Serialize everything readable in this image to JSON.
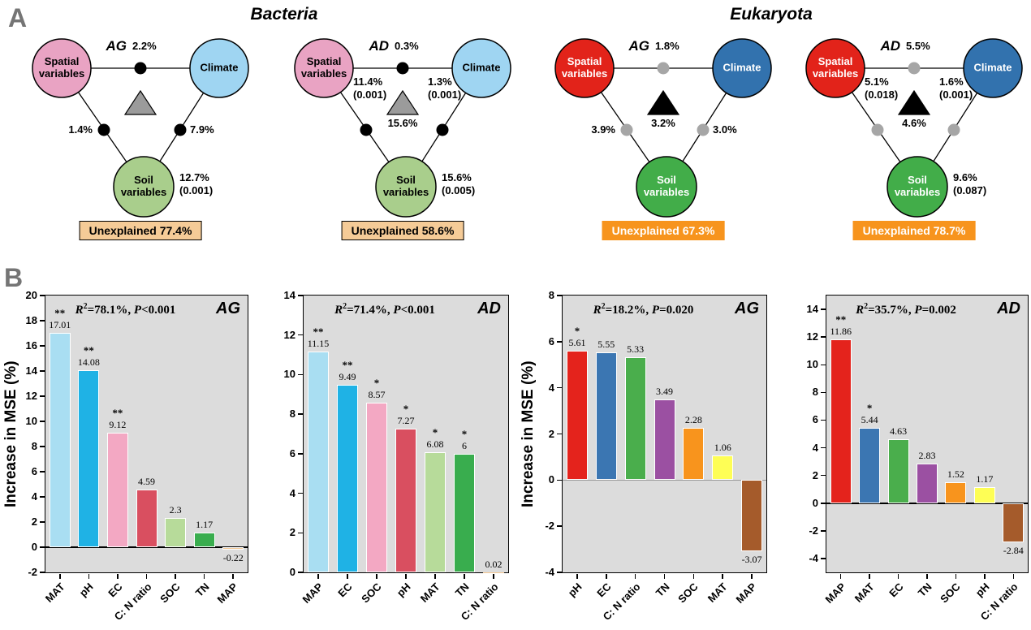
{
  "theme": {
    "panel_letter": "#757575",
    "plot_bg": "#DCDCDC",
    "bac_spatial": "#E9A3C3",
    "bac_climate": "#9FD5F2",
    "bac_soil": "#A9CE8C",
    "bac_dot": "#000000",
    "bac_tri": "#9B9B9B",
    "bac_box": "#F5CB97",
    "euk_spatial": "#E2231A",
    "euk_climate": "#3272AE",
    "euk_soil": "#42AD49",
    "euk_dot": "#A6A6A6",
    "euk_tri": "#000000",
    "euk_box": "#F7941D"
  },
  "panel_a": {
    "label": "A",
    "groups": [
      {
        "title": "Bacteria"
      },
      {
        "title": "Eukaryota"
      }
    ],
    "circle_names": {
      "spatial": "Spatial variables",
      "climate": "Climate",
      "soil": "Soil variables"
    },
    "diagrams": [
      {
        "group": "Bacteria",
        "code": "AG",
        "top_pct": "2.2%",
        "left_pct": "1.4%",
        "right_pct": "7.9%",
        "spatial_side": "",
        "climate_side": "",
        "center_pct": "",
        "soil_side": "12.7%\n(0.001)",
        "unexplained": "Unexplained 77.4%"
      },
      {
        "group": "Bacteria",
        "code": "AD",
        "top_pct": "0.3%",
        "left_pct": "",
        "right_pct": "",
        "spatial_side": "11.4%\n(0.001)",
        "climate_side": "1.3%\n(0.001)",
        "center_pct": "15.6%",
        "soil_side": "15.6%\n(0.005)",
        "unexplained": "Unexplained 58.6%"
      },
      {
        "group": "Eukaryota",
        "code": "AG",
        "top_pct": "1.8%",
        "left_pct": "3.9%",
        "right_pct": "3.0%",
        "spatial_side": "",
        "climate_side": "",
        "center_pct": "3.2%",
        "soil_side": "",
        "unexplained": "Unexplained 67.3%"
      },
      {
        "group": "Eukaryota",
        "code": "AD",
        "top_pct": "5.5%",
        "left_pct": "",
        "right_pct": "",
        "spatial_side": "5.1%\n(0.018)",
        "climate_side": "1.6%\n(0.001)",
        "center_pct": "4.6%",
        "soil_side": "9.6%\n(0.087)",
        "unexplained": "Unexplained 78.7%"
      }
    ]
  },
  "panel_b": {
    "label": "B",
    "ylabel": "Increase in MSE (%)"
  },
  "chart_data": [
    {
      "type": "bar",
      "group": "Bacteria",
      "code": "AG",
      "title": "R2=78.1%, P<0.001",
      "annotation": {
        "r": "R",
        "sup": "2",
        "rest": "=78.1%, ",
        "p": "P",
        "pv": "<0.001"
      },
      "ylabel": "Increase in MSE (%)",
      "xlabel": "",
      "categories": [
        "MAT",
        "pH",
        "EC",
        "C: N ratio",
        "SOC",
        "TN",
        "MAP"
      ],
      "values": [
        17.01,
        14.08,
        9.12,
        4.59,
        2.3,
        1.17,
        -0.22
      ],
      "value_labels": [
        "17.01",
        "14.08",
        "9.12",
        "4.59",
        "2.3",
        "1.17",
        "-0.22"
      ],
      "sig": [
        "**",
        "**",
        "**",
        "",
        "",
        "",
        ""
      ],
      "colors": [
        "#A9DEF2",
        "#1FB2E5",
        "#F3A8C3",
        "#D94F60",
        "#B7DB9A",
        "#39AD4E",
        "#F3C792"
      ],
      "ylim": [
        -2,
        20
      ],
      "yticks": [
        -2,
        0,
        2,
        4,
        6,
        8,
        10,
        12,
        14,
        16,
        18,
        20
      ],
      "zero_line": "#000000",
      "grid": false,
      "legend": false
    },
    {
      "type": "bar",
      "group": "Bacteria",
      "code": "AD",
      "title": "R2=71.4%, P<0.001",
      "annotation": {
        "r": "R",
        "sup": "2",
        "rest": "=71.4%, ",
        "p": "P",
        "pv": "<0.001"
      },
      "ylabel": "",
      "xlabel": "",
      "categories": [
        "MAP",
        "EC",
        "SOC",
        "pH",
        "MAT",
        "TN",
        "C: N ratio"
      ],
      "values": [
        11.15,
        9.49,
        8.57,
        7.27,
        6.08,
        6,
        0.02
      ],
      "value_labels": [
        "11.15",
        "9.49",
        "8.57",
        "7.27",
        "6.08",
        "6",
        "0.02"
      ],
      "sig": [
        "**",
        "**",
        "*",
        "*",
        "*",
        "*",
        ""
      ],
      "colors": [
        "#A9DEF2",
        "#1FB2E5",
        "#F3A8C3",
        "#D94F60",
        "#B7DB9A",
        "#39AD4E",
        "#F3C792"
      ],
      "ylim": [
        0,
        14
      ],
      "yticks": [
        0,
        2,
        4,
        6,
        8,
        10,
        12,
        14
      ],
      "zero_line": null,
      "grid": false,
      "legend": false
    },
    {
      "type": "bar",
      "group": "Eukaryota",
      "code": "AG",
      "title": "R2=18.2%, P=0.020",
      "annotation": {
        "r": "R",
        "sup": "2",
        "rest": "=18.2%, ",
        "p": "P",
        "pv": "=0.020"
      },
      "ylabel": "Increase in MSE (%)",
      "xlabel": "",
      "categories": [
        "pH",
        "EC",
        "C: N ratio",
        "TN",
        "SOC",
        "MAT",
        "MAP"
      ],
      "values": [
        5.61,
        5.55,
        5.33,
        3.49,
        2.28,
        1.06,
        -3.07
      ],
      "value_labels": [
        "5.61",
        "5.55",
        "5.33",
        "3.49",
        "2.28",
        "1.06",
        "-3.07"
      ],
      "sig": [
        "*",
        "",
        "",
        "",
        "",
        "",
        ""
      ],
      "colors": [
        "#E4231C",
        "#3B76B2",
        "#4AAE4C",
        "#9B50A2",
        "#F8941D",
        "#FEFE55",
        "#A55B2B"
      ],
      "ylim": [
        -4,
        8
      ],
      "yticks": [
        -4,
        -2,
        0,
        2,
        4,
        6,
        8
      ],
      "zero_line": "#999999",
      "grid": false,
      "legend": false
    },
    {
      "type": "bar",
      "group": "Eukaryota",
      "code": "AD",
      "title": "R2=35.7%, P=0.002",
      "annotation": {
        "r": "R",
        "sup": "2",
        "rest": "=35.7%, ",
        "p": "P",
        "pv": "=0.002"
      },
      "ylabel": "",
      "xlabel": "",
      "categories": [
        "MAP",
        "MAT",
        "EC",
        "TN",
        "SOC",
        "pH",
        "C: N ratio"
      ],
      "values": [
        11.86,
        5.44,
        4.63,
        2.83,
        1.52,
        1.17,
        -2.84
      ],
      "value_labels": [
        "11.86",
        "5.44",
        "4.63",
        "2.83",
        "1.52",
        "1.17",
        "-2.84"
      ],
      "sig": [
        "**",
        "*",
        "",
        "",
        "",
        "",
        ""
      ],
      "colors": [
        "#E4231C",
        "#3B76B2",
        "#4AAE4C",
        "#9B50A2",
        "#F8941D",
        "#FEFE55",
        "#A55B2B"
      ],
      "ylim": [
        -5,
        15
      ],
      "yticks": [
        -4,
        -2,
        0,
        2,
        4,
        6,
        8,
        10,
        12,
        14
      ],
      "zero_line": "#000000",
      "grid": false,
      "legend": false
    }
  ]
}
